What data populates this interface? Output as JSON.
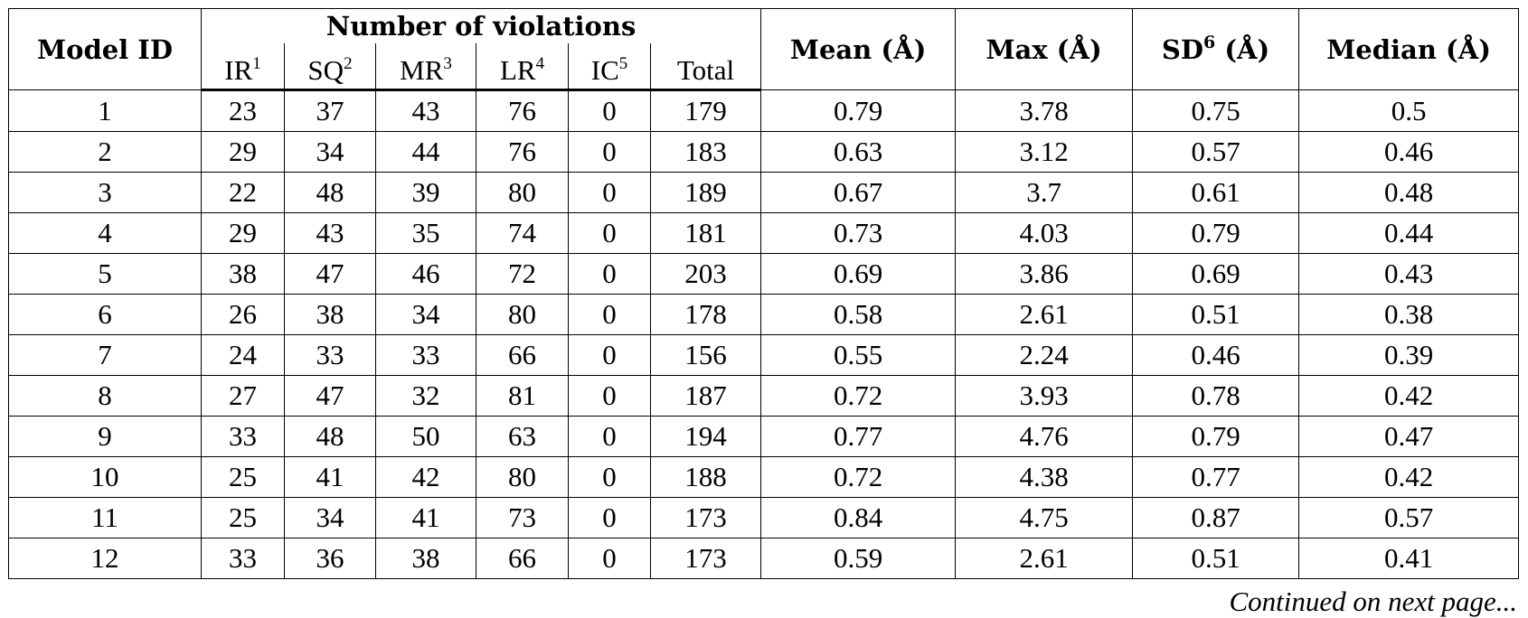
{
  "table": {
    "group_header": "Number of violations",
    "headers": [
      {
        "text": "Model ID"
      },
      {
        "text": "IR",
        "sup": "1"
      },
      {
        "text": "SQ",
        "sup": "2"
      },
      {
        "text": "MR",
        "sup": "3"
      },
      {
        "text": "LR",
        "sup": "4"
      },
      {
        "text": "IC",
        "sup": "5"
      },
      {
        "text": "Total"
      },
      {
        "text": "Mean (Å)"
      },
      {
        "text": "Max (Å)"
      },
      {
        "text": "SD",
        "sup": "6",
        "after": " (Å)"
      },
      {
        "text": "Median (Å)"
      }
    ],
    "rows": [
      [
        1,
        23,
        37,
        43,
        76,
        0,
        179,
        0.79,
        3.78,
        0.75,
        0.5
      ],
      [
        2,
        29,
        34,
        44,
        76,
        0,
        183,
        0.63,
        3.12,
        0.57,
        0.46
      ],
      [
        3,
        22,
        48,
        39,
        80,
        0,
        189,
        0.67,
        3.7,
        0.61,
        0.48
      ],
      [
        4,
        29,
        43,
        35,
        74,
        0,
        181,
        0.73,
        4.03,
        0.79,
        0.44
      ],
      [
        5,
        38,
        47,
        46,
        72,
        0,
        203,
        0.69,
        3.86,
        0.69,
        0.43
      ],
      [
        6,
        26,
        38,
        34,
        80,
        0,
        178,
        0.58,
        2.61,
        0.51,
        0.38
      ],
      [
        7,
        24,
        33,
        33,
        66,
        0,
        156,
        0.55,
        2.24,
        0.46,
        0.39
      ],
      [
        8,
        27,
        47,
        32,
        81,
        0,
        187,
        0.72,
        3.93,
        0.78,
        0.42
      ],
      [
        9,
        33,
        48,
        50,
        63,
        0,
        194,
        0.77,
        4.76,
        0.79,
        0.47
      ],
      [
        10,
        25,
        41,
        42,
        80,
        0,
        188,
        0.72,
        4.38,
        0.77,
        0.42
      ],
      [
        11,
        25,
        34,
        41,
        73,
        0,
        173,
        0.84,
        4.75,
        0.87,
        0.57
      ],
      [
        12,
        33,
        36,
        38,
        66,
        0,
        173,
        0.59,
        2.61,
        0.51,
        0.41
      ]
    ],
    "footer": "Continued on next page..."
  }
}
